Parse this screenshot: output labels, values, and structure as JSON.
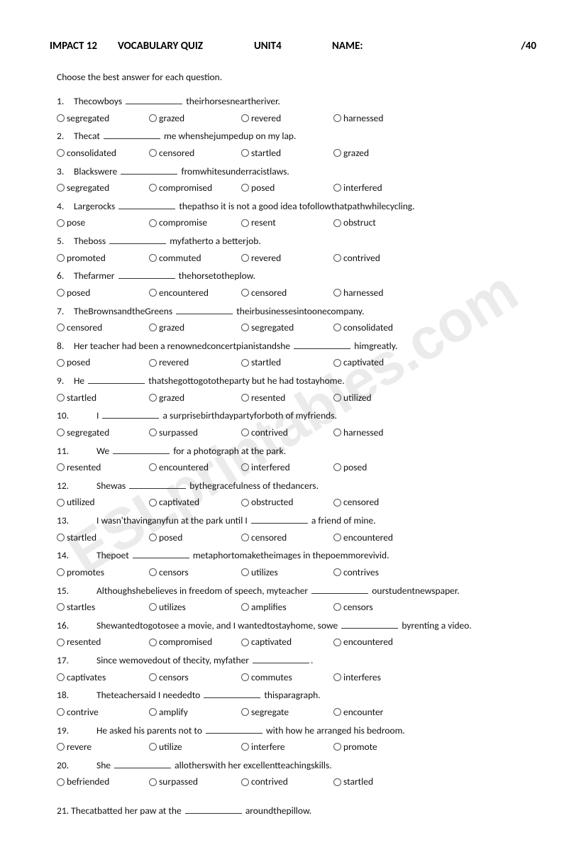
{
  "header": {
    "course": "IMPACT 12",
    "title": "VOCABULARY QUIZ",
    "unit": "UNIT4",
    "name_label": "NAME:",
    "score": "/40"
  },
  "instruction": "Choose the best answer for each question.",
  "watermark": "ESLprintables.com",
  "questions": [
    {
      "n": "1.",
      "text_pre": "Thecowboys ",
      "text_post": " theirhorsesneartheriver.",
      "opts": [
        "segregated",
        "grazed",
        "revered",
        "harnessed"
      ]
    },
    {
      "n": "2.",
      "text_pre": "Thecat ",
      "text_post": " me whenshejumpedup on my lap.",
      "opts": [
        " consolidated",
        "censored",
        "startled",
        "grazed"
      ]
    },
    {
      "n": "3.",
      "text_pre": "Blackswere ",
      "text_post": " fromwhitesunderracistlaws.",
      "opts": [
        "segregated",
        "compromised",
        "posed",
        "interfered"
      ]
    },
    {
      "n": "4.",
      "text_pre": "Largerocks ",
      "text_post": " thepathso it is not a good idea tofollowthatpathwhilecycling.",
      "opts": [
        "pose",
        "compromise",
        "resent",
        "obstruct"
      ]
    },
    {
      "n": "5.",
      "text_pre": "Theboss ",
      "text_post": " myfatherto a betterjob.",
      "opts": [
        "promoted",
        "commuted",
        "revered",
        "contrived"
      ]
    },
    {
      "n": "6.",
      "text_pre": "Thefarmer ",
      "text_post": " thehorsetotheplow.",
      "opts": [
        "posed",
        "encountered",
        "censored",
        "harnessed"
      ]
    },
    {
      "n": "7.",
      "text_pre": "TheBrownsandtheGreens ",
      "text_post": " theirbusinessesintoonecompany.",
      "opts": [
        "censored",
        "grazed",
        "segregated",
        "consolidated"
      ]
    },
    {
      "n": "8.",
      "text_pre": "Her teacher had been a renownedconcertpianistandshe ",
      "text_post": " himgreatly.",
      "opts": [
        "posed",
        "revered",
        "startled",
        "captivated"
      ]
    },
    {
      "n": "9.",
      "text_pre": "He ",
      "text_post": " thatshegottogototheparty but he had tostayhome.",
      "opts": [
        "startled",
        "grazed",
        "resented",
        "utilized"
      ]
    },
    {
      "n": "10.",
      "wide": true,
      "text_pre": "I ",
      "text_post": " a surprisebirthdaypartyforboth of myfriends.",
      "opts": [
        "segregated",
        "surpassed",
        "contrived",
        "harnessed"
      ]
    },
    {
      "n": "11.",
      "wide": true,
      "text_pre": "We ",
      "text_post": " for a photograph at the park.",
      "opts": [
        "resented",
        "encountered",
        "interfered",
        "posed"
      ]
    },
    {
      "n": "12.",
      "wide": true,
      "text_pre": "Shewas ",
      "text_post": " bythegracefulness of thedancers.",
      "opts": [
        "utilized",
        "captivated",
        "obstructed",
        "censored"
      ]
    },
    {
      "n": "13.",
      "wide": true,
      "text_pre": "I wasn'thavinganyfun at the park until I ",
      "text_post": " a friend of mine.",
      "opts": [
        "startled",
        "posed",
        "censored",
        "encountered"
      ]
    },
    {
      "n": "14.",
      "wide": true,
      "text_pre": "Thepoet ",
      "text_post": " metaphortomaketheimages in thepoemmorevivid.",
      "opts": [
        "promotes",
        "censors",
        "utilizes",
        "contrives"
      ]
    },
    {
      "n": "15.",
      "wide": true,
      "text_pre": "Althoughshebelieves in freedom of speech, myteacher ",
      "text_post": " ourstudentnewspaper.",
      "opts": [
        "startles",
        "utilizes",
        "amplifies",
        "censors"
      ]
    },
    {
      "n": "16.",
      "wide": true,
      "text_pre": "Shewantedtogotosee a movie, and I wantedtostayhome, sowe ",
      "text_post": " byrenting a video.",
      "opts": [
        "resented",
        "compromised",
        "captivated",
        "encountered"
      ]
    },
    {
      "n": "17.",
      "wide": true,
      "text_pre": "Since wemovedout of thecity, myfather ",
      "text_post": ".",
      "opts": [
        "captivates",
        "censors",
        "commutes",
        "interferes"
      ]
    },
    {
      "n": "18.",
      "wide": true,
      "text_pre": "Theteachersaid I neededto ",
      "text_post": " thisparagraph.",
      "opts": [
        "contrive",
        "amplify",
        "segregate",
        "encounter"
      ]
    },
    {
      "n": "19.",
      "wide": true,
      "text_pre": "He asked his parents not to ",
      "text_post": " with how he arranged his bedroom.",
      "opts": [
        "revere",
        "utilize",
        "interfere",
        "promote"
      ]
    },
    {
      "n": "20.",
      "wide": true,
      "text_pre": "She ",
      "text_post": " allotherswith her excellentteachingskills.",
      "opts": [
        "befriended",
        "surpassed",
        "contrived",
        "startled"
      ]
    }
  ],
  "q21": {
    "n": "21.",
    "text_pre": "Thecatbatted her paw at the ",
    "text_post": " aroundthepillow."
  }
}
